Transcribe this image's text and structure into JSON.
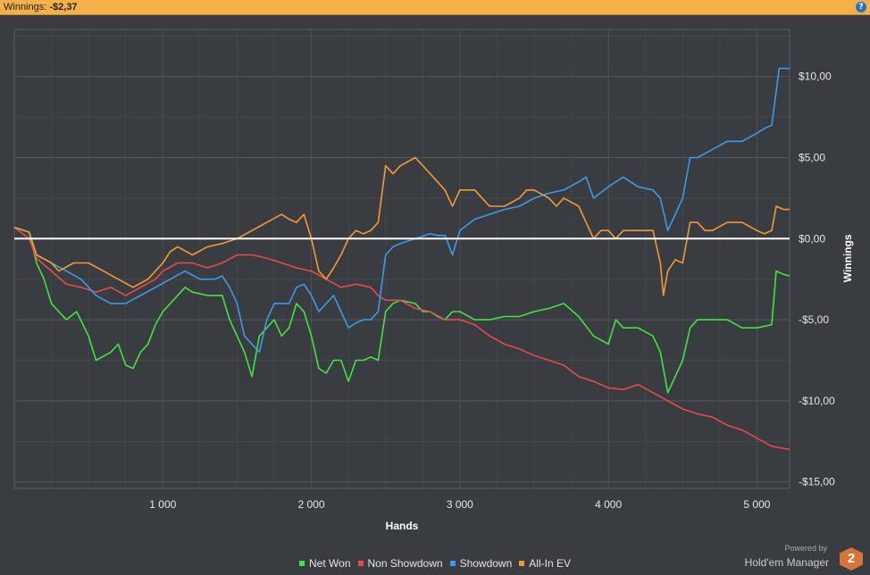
{
  "header": {
    "label": "Winnings:",
    "value": "-$2,37"
  },
  "help_icon": "help-icon",
  "branding": {
    "powered_by": "Powered by",
    "name": "Hold'em Manager",
    "logo": "2"
  },
  "colors": {
    "net_won": "#3ee63e",
    "non_showdown": "#e84a4a",
    "showdown": "#3b9be8",
    "all_in_ev": "#f39a35",
    "zero_line": "#ffffff",
    "background": "#393c40"
  },
  "chart_data": {
    "type": "line",
    "xlabel": "Hands",
    "ylabel": "Winnings",
    "xlim": [
      0,
      5220
    ],
    "ylim": [
      -15.4,
      12.9
    ],
    "x_ticks": [
      {
        "value": 1000,
        "label": "1 000"
      },
      {
        "value": 2000,
        "label": "2 000"
      },
      {
        "value": 3000,
        "label": "3 000"
      },
      {
        "value": 4000,
        "label": "4 000"
      },
      {
        "value": 5000,
        "label": "5 000"
      }
    ],
    "y_ticks": [
      {
        "value": 10,
        "label": "$10,00"
      },
      {
        "value": 5,
        "label": "$5,00"
      },
      {
        "value": 0,
        "label": "$0,00"
      },
      {
        "value": -5,
        "label": "-$5,00"
      },
      {
        "value": -10,
        "label": "-$10,00"
      },
      {
        "value": -15,
        "label": "-$15,00"
      }
    ],
    "grid": true,
    "legend_position": "bottom",
    "series": [
      {
        "name": "Net Won",
        "color": "#3ee63e",
        "points": [
          [
            0,
            0.7
          ],
          [
            100,
            0.4
          ],
          [
            150,
            -1.5
          ],
          [
            200,
            -2.5
          ],
          [
            250,
            -4
          ],
          [
            300,
            -4.5
          ],
          [
            350,
            -5
          ],
          [
            420,
            -4.5
          ],
          [
            500,
            -6
          ],
          [
            550,
            -7.5
          ],
          [
            650,
            -7
          ],
          [
            700,
            -6.5
          ],
          [
            750,
            -7.8
          ],
          [
            800,
            -8
          ],
          [
            850,
            -7
          ],
          [
            900,
            -6.5
          ],
          [
            950,
            -5.3
          ],
          [
            1000,
            -4.5
          ],
          [
            1050,
            -4
          ],
          [
            1100,
            -3.5
          ],
          [
            1150,
            -3
          ],
          [
            1200,
            -3.3
          ],
          [
            1300,
            -3.5
          ],
          [
            1400,
            -3.5
          ],
          [
            1450,
            -5
          ],
          [
            1500,
            -6
          ],
          [
            1550,
            -7
          ],
          [
            1600,
            -8.5
          ],
          [
            1650,
            -6
          ],
          [
            1700,
            -5.5
          ],
          [
            1750,
            -5
          ],
          [
            1800,
            -6
          ],
          [
            1850,
            -5.5
          ],
          [
            1900,
            -4
          ],
          [
            1950,
            -4.5
          ],
          [
            2000,
            -6
          ],
          [
            2050,
            -8
          ],
          [
            2100,
            -8.3
          ],
          [
            2150,
            -7.5
          ],
          [
            2200,
            -7.5
          ],
          [
            2250,
            -8.8
          ],
          [
            2300,
            -7.5
          ],
          [
            2350,
            -7.5
          ],
          [
            2400,
            -7.3
          ],
          [
            2450,
            -7.5
          ],
          [
            2500,
            -4.5
          ],
          [
            2550,
            -4
          ],
          [
            2600,
            -3.8
          ],
          [
            2700,
            -4
          ],
          [
            2750,
            -4.5
          ],
          [
            2800,
            -4.5
          ],
          [
            2850,
            -4.8
          ],
          [
            2900,
            -5
          ],
          [
            2950,
            -4.5
          ],
          [
            3000,
            -4.5
          ],
          [
            3100,
            -5
          ],
          [
            3200,
            -5
          ],
          [
            3300,
            -4.8
          ],
          [
            3400,
            -4.8
          ],
          [
            3500,
            -4.5
          ],
          [
            3600,
            -4.3
          ],
          [
            3700,
            -4
          ],
          [
            3800,
            -4.8
          ],
          [
            3900,
            -6
          ],
          [
            4000,
            -6.5
          ],
          [
            4050,
            -5
          ],
          [
            4100,
            -5.5
          ],
          [
            4200,
            -5.5
          ],
          [
            4300,
            -6
          ],
          [
            4350,
            -7
          ],
          [
            4400,
            -9.5
          ],
          [
            4450,
            -8.5
          ],
          [
            4500,
            -7.5
          ],
          [
            4550,
            -5.5
          ],
          [
            4600,
            -5
          ],
          [
            4700,
            -5
          ],
          [
            4800,
            -5
          ],
          [
            4900,
            -5.5
          ],
          [
            5000,
            -5.5
          ],
          [
            5100,
            -5.3
          ],
          [
            5130,
            -2
          ],
          [
            5180,
            -2.2
          ],
          [
            5220,
            -2.3
          ]
        ]
      },
      {
        "name": "Non Showdown",
        "color": "#e84a4a",
        "points": [
          [
            0,
            0.7
          ],
          [
            100,
            0
          ],
          [
            150,
            -1.2
          ],
          [
            250,
            -2
          ],
          [
            350,
            -2.8
          ],
          [
            450,
            -3
          ],
          [
            550,
            -3.3
          ],
          [
            650,
            -3
          ],
          [
            750,
            -3.5
          ],
          [
            850,
            -3
          ],
          [
            950,
            -2.5
          ],
          [
            1000,
            -2
          ],
          [
            1100,
            -1.5
          ],
          [
            1200,
            -1.5
          ],
          [
            1300,
            -1.8
          ],
          [
            1400,
            -1.5
          ],
          [
            1500,
            -1
          ],
          [
            1600,
            -1
          ],
          [
            1700,
            -1.2
          ],
          [
            1800,
            -1.5
          ],
          [
            1900,
            -1.8
          ],
          [
            2000,
            -2
          ],
          [
            2100,
            -2.5
          ],
          [
            2200,
            -3
          ],
          [
            2300,
            -2.8
          ],
          [
            2400,
            -3
          ],
          [
            2450,
            -3.5
          ],
          [
            2500,
            -3.8
          ],
          [
            2550,
            -3.8
          ],
          [
            2600,
            -3.8
          ],
          [
            2700,
            -4.3
          ],
          [
            2800,
            -4.5
          ],
          [
            2900,
            -5
          ],
          [
            3000,
            -5
          ],
          [
            3100,
            -5.3
          ],
          [
            3200,
            -6
          ],
          [
            3300,
            -6.5
          ],
          [
            3400,
            -6.8
          ],
          [
            3500,
            -7.2
          ],
          [
            3600,
            -7.5
          ],
          [
            3700,
            -7.8
          ],
          [
            3800,
            -8.5
          ],
          [
            3900,
            -8.8
          ],
          [
            4000,
            -9.2
          ],
          [
            4100,
            -9.3
          ],
          [
            4200,
            -9
          ],
          [
            4300,
            -9.5
          ],
          [
            4400,
            -10
          ],
          [
            4500,
            -10.5
          ],
          [
            4600,
            -10.8
          ],
          [
            4700,
            -11
          ],
          [
            4800,
            -11.5
          ],
          [
            4900,
            -11.8
          ],
          [
            5000,
            -12.3
          ],
          [
            5100,
            -12.8
          ],
          [
            5220,
            -13
          ]
        ]
      },
      {
        "name": "Showdown",
        "color": "#3b9be8",
        "points": [
          [
            0,
            0.7
          ],
          [
            100,
            0.4
          ],
          [
            150,
            -1
          ],
          [
            250,
            -1.5
          ],
          [
            350,
            -2
          ],
          [
            450,
            -2.5
          ],
          [
            550,
            -3.5
          ],
          [
            650,
            -4
          ],
          [
            750,
            -4
          ],
          [
            850,
            -3.5
          ],
          [
            950,
            -3
          ],
          [
            1050,
            -2.5
          ],
          [
            1150,
            -2
          ],
          [
            1250,
            -2.5
          ],
          [
            1350,
            -2.5
          ],
          [
            1400,
            -2.3
          ],
          [
            1450,
            -3
          ],
          [
            1500,
            -4
          ],
          [
            1550,
            -6
          ],
          [
            1600,
            -6.5
          ],
          [
            1650,
            -7
          ],
          [
            1700,
            -5
          ],
          [
            1750,
            -4
          ],
          [
            1800,
            -4
          ],
          [
            1850,
            -4
          ],
          [
            1900,
            -3
          ],
          [
            1950,
            -2.8
          ],
          [
            2000,
            -3.5
          ],
          [
            2050,
            -4.5
          ],
          [
            2100,
            -4
          ],
          [
            2150,
            -3.5
          ],
          [
            2200,
            -4.5
          ],
          [
            2250,
            -5.5
          ],
          [
            2300,
            -5.2
          ],
          [
            2350,
            -5
          ],
          [
            2400,
            -5
          ],
          [
            2450,
            -4.5
          ],
          [
            2500,
            -1
          ],
          [
            2550,
            -0.5
          ],
          [
            2600,
            -0.3
          ],
          [
            2700,
            0
          ],
          [
            2800,
            0.3
          ],
          [
            2850,
            0.2
          ],
          [
            2900,
            0.2
          ],
          [
            2950,
            -1
          ],
          [
            3000,
            0.5
          ],
          [
            3100,
            1.2
          ],
          [
            3200,
            1.5
          ],
          [
            3300,
            1.8
          ],
          [
            3400,
            2
          ],
          [
            3500,
            2.5
          ],
          [
            3600,
            2.8
          ],
          [
            3700,
            3
          ],
          [
            3800,
            3.5
          ],
          [
            3850,
            3.8
          ],
          [
            3900,
            2.5
          ],
          [
            4000,
            3.2
          ],
          [
            4050,
            3.5
          ],
          [
            4100,
            3.8
          ],
          [
            4200,
            3.2
          ],
          [
            4300,
            3
          ],
          [
            4350,
            2.5
          ],
          [
            4400,
            0.5
          ],
          [
            4450,
            1.5
          ],
          [
            4500,
            2.5
          ],
          [
            4550,
            5
          ],
          [
            4600,
            5
          ],
          [
            4700,
            5.5
          ],
          [
            4800,
            6
          ],
          [
            4900,
            6
          ],
          [
            5000,
            6.5
          ],
          [
            5050,
            6.8
          ],
          [
            5100,
            7
          ],
          [
            5150,
            10.5
          ],
          [
            5220,
            10.5
          ]
        ]
      },
      {
        "name": "All-In EV",
        "color": "#f39a35",
        "points": [
          [
            0,
            0.7
          ],
          [
            100,
            0.4
          ],
          [
            150,
            -1
          ],
          [
            250,
            -1.5
          ],
          [
            300,
            -2
          ],
          [
            400,
            -1.5
          ],
          [
            500,
            -1.5
          ],
          [
            600,
            -2
          ],
          [
            700,
            -2.5
          ],
          [
            800,
            -3
          ],
          [
            900,
            -2.5
          ],
          [
            1000,
            -1.5
          ],
          [
            1050,
            -0.8
          ],
          [
            1100,
            -0.5
          ],
          [
            1200,
            -1
          ],
          [
            1300,
            -0.5
          ],
          [
            1400,
            -0.3
          ],
          [
            1500,
            0
          ],
          [
            1600,
            0.5
          ],
          [
            1700,
            1
          ],
          [
            1800,
            1.5
          ],
          [
            1850,
            1.2
          ],
          [
            1900,
            1
          ],
          [
            1950,
            1.5
          ],
          [
            2000,
            0
          ],
          [
            2050,
            -2
          ],
          [
            2100,
            -2.5
          ],
          [
            2150,
            -1.8
          ],
          [
            2200,
            -1
          ],
          [
            2250,
            0
          ],
          [
            2300,
            0.5
          ],
          [
            2350,
            0.3
          ],
          [
            2400,
            0.5
          ],
          [
            2450,
            1
          ],
          [
            2500,
            4.5
          ],
          [
            2550,
            4
          ],
          [
            2600,
            4.5
          ],
          [
            2700,
            5
          ],
          [
            2800,
            4
          ],
          [
            2850,
            3.5
          ],
          [
            2900,
            3
          ],
          [
            2950,
            2
          ],
          [
            3000,
            3
          ],
          [
            3050,
            3
          ],
          [
            3100,
            3
          ],
          [
            3150,
            2.5
          ],
          [
            3200,
            2
          ],
          [
            3300,
            2
          ],
          [
            3400,
            2.5
          ],
          [
            3450,
            3
          ],
          [
            3500,
            3
          ],
          [
            3600,
            2.5
          ],
          [
            3650,
            2
          ],
          [
            3700,
            2.5
          ],
          [
            3800,
            2
          ],
          [
            3850,
            1
          ],
          [
            3900,
            0
          ],
          [
            3950,
            0.5
          ],
          [
            4000,
            0.5
          ],
          [
            4050,
            0
          ],
          [
            4100,
            0.5
          ],
          [
            4200,
            0.5
          ],
          [
            4300,
            0.5
          ],
          [
            4350,
            -1.5
          ],
          [
            4370,
            -3.5
          ],
          [
            4400,
            -2
          ],
          [
            4450,
            -1.3
          ],
          [
            4500,
            -1.5
          ],
          [
            4550,
            1
          ],
          [
            4600,
            1
          ],
          [
            4650,
            0.5
          ],
          [
            4700,
            0.5
          ],
          [
            4800,
            1
          ],
          [
            4900,
            1
          ],
          [
            5000,
            0.5
          ],
          [
            5050,
            0.3
          ],
          [
            5100,
            0.5
          ],
          [
            5130,
            2
          ],
          [
            5180,
            1.8
          ],
          [
            5220,
            1.8
          ]
        ]
      }
    ]
  }
}
